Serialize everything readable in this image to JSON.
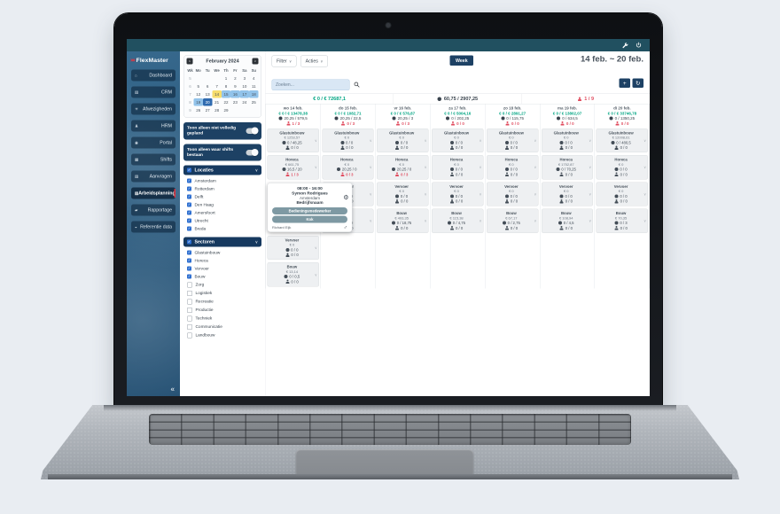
{
  "glyphs": {
    "logo_mark": "××",
    "chevron_down": "∨",
    "prev": "‹",
    "next": "›",
    "collapse": "«",
    "check": "✓",
    "male": "♂",
    "gear": "⚙",
    "plus": "+",
    "refresh": "↻"
  },
  "colors": {
    "header_teal": "#215060",
    "navy": "#1d4164",
    "section_navy": "#16395f",
    "accent_red": "#e8323c",
    "money_green": "#00a583",
    "alert_red": "#e04b5e",
    "cal_selected": "#2f6bb0",
    "cal_range": "#92c3ea",
    "cal_today": "#f6dd6d",
    "checkbox_blue": "#2e6fd0",
    "tag_teal": "#7e99a3"
  },
  "app": {
    "logo_text": "FlexMaster",
    "sidebar": {
      "items": [
        {
          "label": "Dashboard",
          "glyph": "⌂",
          "icon": "home-icon",
          "active": false
        },
        {
          "label": "CRM",
          "glyph": "▤",
          "icon": "building-icon",
          "active": false
        },
        {
          "label": "Afwezigheden",
          "glyph": "☀",
          "icon": "absence-icon",
          "active": false
        },
        {
          "label": "HRM",
          "glyph": "♟",
          "icon": "person-icon",
          "active": false
        },
        {
          "label": "Portal",
          "glyph": "◉",
          "icon": "megaphone-icon",
          "active": false
        },
        {
          "label": "Shifts",
          "glyph": "▦",
          "icon": "briefcase-icon",
          "active": false
        },
        {
          "label": "Aanvragen",
          "glyph": "▧",
          "icon": "request-icon",
          "active": false
        },
        {
          "label": "Arbeidsplanning",
          "glyph": "▨",
          "icon": "planning-icon",
          "active": true
        },
        {
          "label": "Rapportage",
          "glyph": "▰",
          "icon": "chart-icon",
          "active": false
        },
        {
          "label": "Referentie data",
          "glyph": "◒",
          "icon": "database-icon",
          "active": false
        }
      ]
    },
    "calendar": {
      "title": "February 2024",
      "dow": [
        "Wk",
        "Mo",
        "Tu",
        "We",
        "Th",
        "Fr",
        "Sa",
        "Su"
      ],
      "weeks": [
        {
          "wk": "5",
          "days": [
            {
              "d": ""
            },
            {
              "d": ""
            },
            {
              "d": ""
            },
            {
              "d": "1"
            },
            {
              "d": "2"
            },
            {
              "d": "3"
            },
            {
              "d": "4"
            }
          ]
        },
        {
          "wk": "6",
          "days": [
            {
              "d": "5"
            },
            {
              "d": "6"
            },
            {
              "d": "7"
            },
            {
              "d": "8"
            },
            {
              "d": "9"
            },
            {
              "d": "10"
            },
            {
              "d": "11"
            }
          ]
        },
        {
          "wk": "7",
          "days": [
            {
              "d": "12"
            },
            {
              "d": "13"
            },
            {
              "d": "14",
              "hl": "today"
            },
            {
              "d": "15",
              "hl": "range"
            },
            {
              "d": "16",
              "hl": "range"
            },
            {
              "d": "17",
              "hl": "range"
            },
            {
              "d": "18",
              "hl": "range"
            }
          ]
        },
        {
          "wk": "8",
          "days": [
            {
              "d": "19",
              "hl": "range"
            },
            {
              "d": "20",
              "hl": "selected"
            },
            {
              "d": "21"
            },
            {
              "d": "22"
            },
            {
              "d": "23"
            },
            {
              "d": "24"
            },
            {
              "d": "25"
            }
          ]
        },
        {
          "wk": "9",
          "days": [
            {
              "d": "26"
            },
            {
              "d": "27"
            },
            {
              "d": "28"
            },
            {
              "d": "29"
            },
            {
              "d": ""
            },
            {
              "d": ""
            },
            {
              "d": ""
            }
          ]
        }
      ]
    },
    "toggles": [
      {
        "label": "Toon alleen niet volledig gepland"
      },
      {
        "label": "Toon alleen waar shifts bestaan"
      }
    ],
    "filters": [
      {
        "title": "Locaties",
        "items": [
          {
            "label": "Amsterdam",
            "checked": true
          },
          {
            "label": "Rotterdam",
            "checked": true
          },
          {
            "label": "Delft",
            "checked": true
          },
          {
            "label": "Den Haag",
            "checked": true
          },
          {
            "label": "Amersfoort",
            "checked": true
          },
          {
            "label": "Utrecht",
            "checked": true
          },
          {
            "label": "Breda",
            "checked": true
          }
        ]
      },
      {
        "title": "Sectoren",
        "items": [
          {
            "label": "Glastuinbouw",
            "checked": true
          },
          {
            "label": "Horeca",
            "checked": true
          },
          {
            "label": "Vervoer",
            "checked": true
          },
          {
            "label": "Bouw",
            "checked": true
          },
          {
            "label": "Zorg",
            "checked": false
          },
          {
            "label": "Logistiek",
            "checked": false
          },
          {
            "label": "Recreatie",
            "checked": false
          },
          {
            "label": "Productie",
            "checked": false
          },
          {
            "label": "Techniek",
            "checked": false
          },
          {
            "label": "Communicatie",
            "checked": false
          },
          {
            "label": "Landbouw",
            "checked": false
          }
        ]
      }
    ],
    "toolbar": {
      "filter": "Filter",
      "acties": "Acties",
      "week": "Week",
      "date_range": "14 feb. ~ 20 feb.",
      "search_placeholder": "Zoeken..."
    },
    "summary": {
      "money": "€ 0 / € 72687,1",
      "hours": "60,75 / 2907,25",
      "people": "1 / 9"
    },
    "shift_card": {
      "time": "08:00 - 16:00",
      "name": "Symon Rodrigues",
      "city": "Amsterdam",
      "company": "Bedrijfsnaam",
      "tags": [
        "Bedieningsmedewerker",
        "Kok"
      ],
      "assignee": "Richard Eijk"
    },
    "days": [
      {
        "label": "wo 14 feb.",
        "money": "€ 0 / € 13478,38",
        "hours": "20,25 / 579,5",
        "people": "1 / 3",
        "expanded_after": 1,
        "cards": [
          {
            "sector": "Glastuinbouw",
            "money": "€ 1253,57",
            "hours": "0 / 48,25",
            "people": "0 / 0",
            "alert": false
          },
          {
            "sector": "Horeca",
            "money": "€ 661,75",
            "hours": "16,5 / 20",
            "people": "1 / 3",
            "alert": true
          },
          {
            "sector": "Vervoer",
            "money": "€ 0",
            "hours": "0 / 0",
            "people": "0 / 0",
            "alert": false
          },
          {
            "sector": "Bouw",
            "money": "€ 13,14",
            "hours": "0 / 0,5",
            "people": "0 / 0",
            "alert": false
          }
        ]
      },
      {
        "label": "do 15 feb.",
        "money": "€ 0 / € 1082,71",
        "hours": "20,25 / 22,5",
        "people": "0 / 3",
        "expanded_after": null,
        "cards": [
          {
            "sector": "Glastuinbouw",
            "money": "€ 0",
            "hours": "0 / 0",
            "people": "0 / 0",
            "alert": false
          },
          {
            "sector": "Horeca",
            "money": "€ 0",
            "hours": "20,25 / 0",
            "people": "0 / 3",
            "alert": true
          },
          {
            "sector": "Vervoer",
            "money": "€ 0",
            "hours": "0 / 0",
            "people": "0 / 0",
            "alert": false
          },
          {
            "sector": "Bouw",
            "money": "€ 0",
            "hours": "0 / 0",
            "people": "0 / 0",
            "alert": false
          }
        ]
      },
      {
        "label": "vr 16 feb.",
        "money": "€ 0 / € 576,87",
        "hours": "20,25 / 3",
        "people": "0 / 3",
        "expanded_after": null,
        "cards": [
          {
            "sector": "Glastuinbouw",
            "money": "€ 0",
            "hours": "0 / 0",
            "people": "0 / 0",
            "alert": false
          },
          {
            "sector": "Horeca",
            "money": "€ 0",
            "hours": "20,25 / 0",
            "people": "0 / 3",
            "alert": true
          },
          {
            "sector": "Vervoer",
            "money": "€ 0",
            "hours": "0 / 0",
            "people": "0 / 0",
            "alert": false
          },
          {
            "sector": "Bouw",
            "money": "€ 493,35",
            "hours": "0 / 18,75",
            "people": "0 / 0",
            "alert": false
          }
        ]
      },
      {
        "label": "za 17 feb.",
        "money": "€ 0 / € 5004,16",
        "hours": "0 / 202,25",
        "people": "0 / 0",
        "expanded_after": null,
        "cards": [
          {
            "sector": "Glastuinbouw",
            "money": "€ 0",
            "hours": "0 / 0",
            "people": "0 / 0",
            "alert": false
          },
          {
            "sector": "Horeca",
            "money": "€ 0",
            "hours": "0 / 0",
            "people": "0 / 0",
            "alert": false
          },
          {
            "sector": "Vervoer",
            "money": "€ 0",
            "hours": "0 / 0",
            "people": "0 / 0",
            "alert": false
          },
          {
            "sector": "Bouw",
            "money": "€ 115,38",
            "hours": "0 / 4,75",
            "people": "0 / 0",
            "alert": false
          }
        ]
      },
      {
        "label": "zo 18 feb.",
        "money": "€ 0 / € 2891,27",
        "hours": "0 / 115,75",
        "people": "0 / 0",
        "expanded_after": null,
        "cards": [
          {
            "sector": "Glastuinbouw",
            "money": "€ 0",
            "hours": "0 / 0",
            "people": "0 / 0",
            "alert": false
          },
          {
            "sector": "Horeca",
            "money": "€ 0",
            "hours": "0 / 0",
            "people": "0 / 0",
            "alert": false
          },
          {
            "sector": "Vervoer",
            "money": "€ 0",
            "hours": "0 / 0",
            "people": "0 / 0",
            "alert": false
          },
          {
            "sector": "Bouw",
            "money": "€ 67,17",
            "hours": "0 / 2,75",
            "people": "0 / 0",
            "alert": false
          }
        ]
      },
      {
        "label": "ma 19 feb.",
        "money": "€ 0 / € 13802,07",
        "hours": "0 / 634,5",
        "people": "0 / 0",
        "expanded_after": null,
        "cards": [
          {
            "sector": "Glastuinbouw",
            "money": "€ 0",
            "hours": "0 / 0",
            "people": "0 / 0",
            "alert": false
          },
          {
            "sector": "Horeca",
            "money": "€ 1752,87",
            "hours": "0 / 70,25",
            "people": "0 / 0",
            "alert": false
          },
          {
            "sector": "Vervoer",
            "money": "€ 0",
            "hours": "0 / 0",
            "people": "0 / 0",
            "alert": false
          },
          {
            "sector": "Bouw",
            "money": "€ 108,94",
            "hours": "0 / 4,5",
            "people": "0 / 0",
            "alert": false
          }
        ]
      },
      {
        "label": "di 20 feb.",
        "money": "€ 0 / € 33746,78",
        "hours": "0 / 1350,25",
        "people": "0 / 0",
        "expanded_after": null,
        "cards": [
          {
            "sector": "Glastuinbouw",
            "money": "€ 12008,61",
            "hours": "0 / 480,5",
            "people": "0 / 0",
            "alert": false
          },
          {
            "sector": "Horeca",
            "money": "€ 0",
            "hours": "0 / 0",
            "people": "0 / 0",
            "alert": false
          },
          {
            "sector": "Vervoer",
            "money": "€ 0",
            "hours": "0 / 0",
            "people": "0 / 0",
            "alert": false
          },
          {
            "sector": "Bouw",
            "money": "€ 70,35",
            "hours": "0 / 3",
            "people": "0 / 0",
            "alert": false
          }
        ]
      }
    ]
  }
}
